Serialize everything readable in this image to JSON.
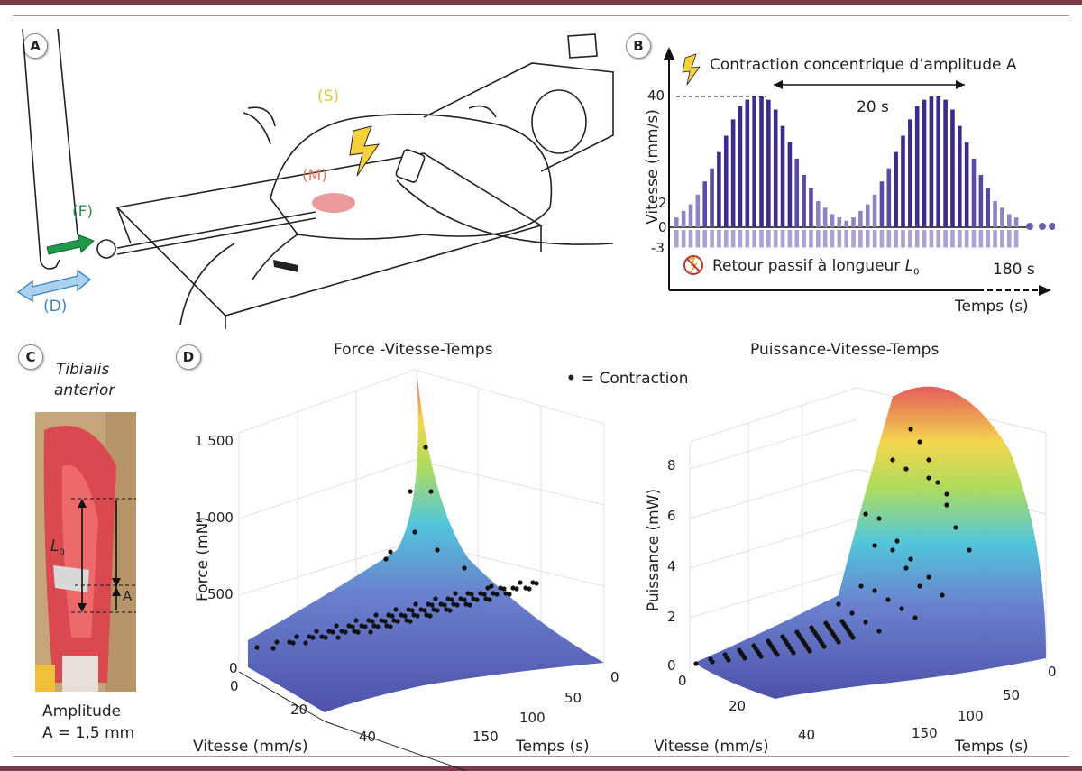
{
  "panels": {
    "a": "A",
    "b": "B",
    "c": "C",
    "d": "D"
  },
  "panelA": {
    "s": "(S)",
    "m": "(M)",
    "f": "(F)",
    "d": "(D)"
  },
  "panelB": {
    "title": "Contraction concentrique d’amplitude A",
    "ylabel": "Vitesse (mm/s)",
    "xlabel": "Temps (s)",
    "duration": "20 s",
    "end": "180 s",
    "ticks": [
      "40",
      "2",
      "0",
      "-3"
    ],
    "passive_prefix": "Retour passif à longueur ",
    "passive_sym": "L",
    "passive_sub": "0"
  },
  "panelC": {
    "title1": "Tibialis",
    "title2": "anterior",
    "l0": "L",
    "l0sub": "0",
    "a": "A",
    "amp1": "Amplitude",
    "amp2": "A = 1,5 mm"
  },
  "panelD": {
    "legend": "= Contraction",
    "force": {
      "title": "Force -Vitesse-Temps",
      "zlabel": "Force (mN)",
      "xlabel": "Vitesse (mm/s)",
      "ylabel": "Temps (s)",
      "zticks": [
        "1 500",
        "1 000",
        "500",
        "0"
      ],
      "xticks": [
        "0",
        "20",
        "40"
      ],
      "yticks": [
        "0",
        "50",
        "100",
        "150"
      ]
    },
    "power": {
      "title": "Puissance-Vitesse-Temps",
      "zlabel": "Puissance (mW)",
      "xlabel": "Vitesse (mm/s)",
      "ylabel": "Temps (s)",
      "zticks": [
        "8",
        "6",
        "4",
        "2",
        "0"
      ],
      "xticks": [
        "0",
        "20",
        "40"
      ],
      "yticks": [
        "0",
        "50",
        "100",
        "150"
      ]
    }
  },
  "chart_data": [
    {
      "type": "bar",
      "title": "Contraction concentrique d’amplitude A",
      "xlabel": "Temps (s)",
      "ylabel": "Vitesse (mm/s)",
      "ylim": [
        -3,
        40
      ],
      "series": [
        {
          "values": [
            3,
            5,
            7,
            10,
            14,
            18,
            23,
            28,
            33,
            37,
            39,
            40,
            40,
            39,
            36,
            31,
            26,
            21,
            16,
            12,
            8,
            6,
            4,
            3,
            2,
            3,
            5,
            7,
            10,
            14,
            18,
            23,
            28,
            33,
            37,
            39,
            40,
            40,
            39,
            36,
            31,
            26,
            21,
            16,
            12,
            8,
            6,
            4,
            3
          ]
        },
        {
          "values": [
            -3,
            -3,
            -3,
            -3,
            -3,
            -3,
            -3,
            -3,
            -3,
            -3,
            -3,
            -3,
            -3,
            -3,
            -3,
            -3,
            -3,
            -3,
            -3,
            -3,
            -3,
            -3,
            -3,
            -3,
            -3,
            -3,
            -3,
            -3,
            -3,
            -3,
            -3,
            -3,
            -3,
            -3,
            -3,
            -3,
            -3,
            -3,
            -3,
            -3,
            -3,
            -3,
            -3,
            -3,
            -3,
            -3,
            -3,
            -3,
            -3
          ]
        }
      ]
    }
  ]
}
